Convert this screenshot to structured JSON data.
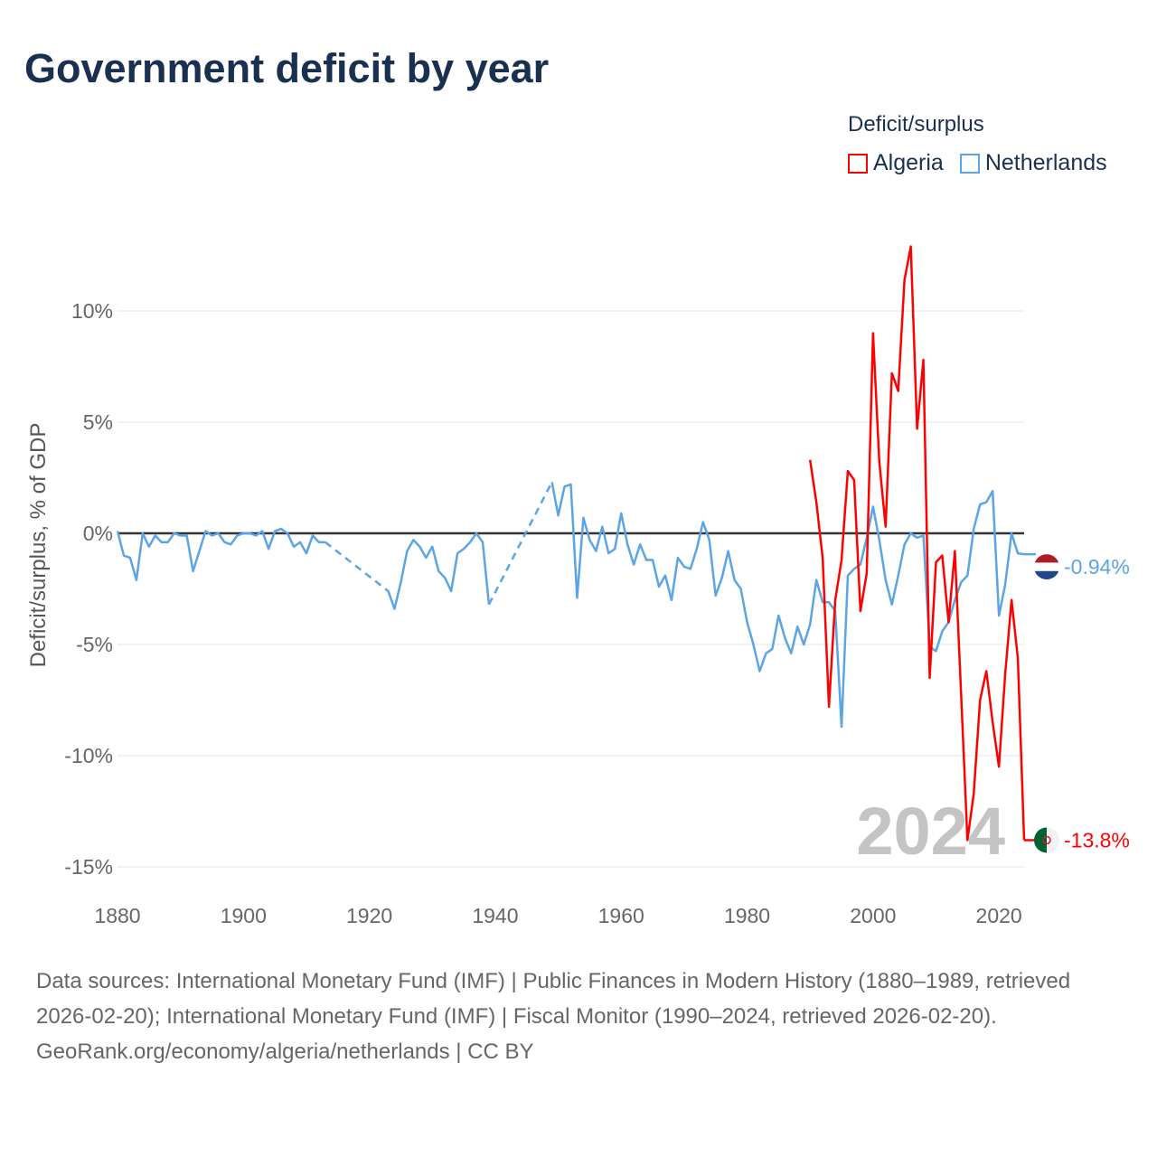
{
  "title": "Government deficit by year",
  "legend": {
    "title": "Deficit/surplus",
    "items": [
      {
        "label": "Algeria",
        "color": "#ff0000"
      },
      {
        "label": "Netherlands",
        "color": "#5ba4e6"
      }
    ]
  },
  "footer": {
    "sources": "Data sources: International Monetary Fund (IMF) | Public Finances in Modern History (1880–1989, retrieved 2026-02-20); International Monetary Fund (IMF) | Fiscal Monitor (1990–2024, retrieved 2026-02-20).",
    "credit": "GeoRank.org/economy/algeria/netherlands | CC BY"
  },
  "chart_data": {
    "type": "line",
    "title": "Government deficit by year",
    "xlabel": "",
    "ylabel": "Deficit/surplus, % of GDP",
    "xlim": [
      1880,
      2024
    ],
    "ylim": [
      -15,
      13
    ],
    "grid": true,
    "legend_placement": "top-right",
    "year_watermark": "2024",
    "x_ticks": [
      "1880",
      "1900",
      "1920",
      "1940",
      "1960",
      "1980",
      "2000",
      "2020"
    ],
    "x_tick_values": [
      1880,
      1900,
      1920,
      1940,
      1960,
      1980,
      2000,
      2020
    ],
    "y_ticks": [
      "10%",
      "5%",
      "0%",
      "-5%",
      "-10%",
      "-15%"
    ],
    "y_tick_values": [
      10,
      5,
      0,
      -5,
      -10,
      -15
    ],
    "series": [
      {
        "name": "Netherlands",
        "color": "#5ba4e6",
        "end_label": "-0.94%",
        "flag": "netherlands-flag",
        "segments": [
          {
            "start_year": 1880,
            "values": [
              0.1,
              -1.0,
              -1.1,
              -2.1,
              0,
              -0.6,
              -0.1,
              -0.4,
              -0.4,
              0,
              -0.1,
              -0.1,
              -1.7,
              -0.8,
              0.1,
              -0.1,
              0,
              -0.4,
              -0.5,
              -0.1,
              0,
              0,
              -0.1,
              0.1,
              -0.7,
              0.1,
              0.2,
              0,
              -0.6,
              -0.4,
              -0.9,
              -0.1,
              -0.4,
              -0.4
            ]
          },
          {
            "start_year": 1923,
            "values": [
              -2.6,
              -3.4,
              -2.2,
              -0.8,
              -0.3,
              -0.6,
              -1.1,
              -0.6,
              -1.7,
              -2.0,
              -2.6,
              -0.9,
              -0.7,
              -0.4,
              0,
              -0.4,
              -3.2
            ]
          },
          {
            "start_year": 1949,
            "values": [
              2.3,
              0.8,
              2.1,
              2.2,
              -2.9,
              0.7,
              -0.3,
              -0.8,
              0.3,
              -0.9,
              -0.7,
              0.9,
              -0.5,
              -1.4,
              -0.5,
              -1.2,
              -1.2,
              -2.4,
              -1.9,
              -3.0,
              -1.1,
              -1.5,
              -1.6,
              -0.7,
              0.5,
              -0.3,
              -2.8,
              -2.0,
              -0.8,
              -2.1,
              -2.5,
              -4.0,
              -5.0,
              -6.2,
              -5.4,
              -5.2,
              -3.7,
              -4.7,
              -5.4,
              -4.2,
              -5.0,
              -4.1,
              -2.1,
              -3.1,
              -3.1,
              -3.5,
              -8.7,
              -1.9,
              -1.6,
              -1.4,
              -0.2,
              1.2,
              -0.3,
              -2.1,
              -3.2,
              -1.9,
              -0.5,
              0,
              -0.2,
              -0.1,
              -5.1,
              -5.3,
              -4.4,
              -4.0,
              -3.0,
              -2.2,
              -1.9,
              0.2,
              1.3,
              1.4,
              1.9,
              -3.7,
              -2.3,
              0,
              -0.9,
              -0.94
            ]
          }
        ]
      },
      {
        "name": "Algeria",
        "color": "#ff0000",
        "end_label": "-13.8%",
        "flag": "algeria-flag",
        "segments": [
          {
            "start_year": 1990,
            "values": [
              3.3,
              1.4,
              -1.1,
              -7.8,
              -3.0,
              -1.2,
              2.8,
              2.4,
              -3.5,
              -1.8,
              9.0,
              3.2,
              0.3,
              7.2,
              6.4,
              11.4,
              12.9,
              4.7,
              7.8,
              -6.5,
              -1.3,
              -1.0,
              -4.0,
              -0.8,
              -7.3,
              -13.8,
              -11.7,
              -7.5,
              -6.2,
              -8.5,
              -10.5,
              -6.3,
              -3.0,
              -5.6,
              -13.8
            ]
          }
        ]
      }
    ]
  }
}
